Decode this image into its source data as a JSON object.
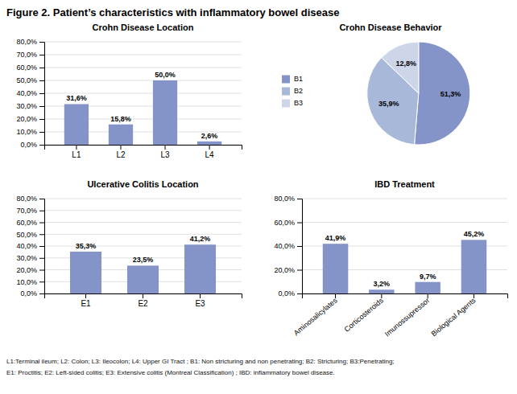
{
  "title": "Figure 2. Patient’s characteristics with inflammatory bowel disease",
  "annotations": [
    "L1:Terminal ileum; L2: Colon; L3: Ileocolon; L4: Upper GI  Tract ; B1: Non stricturing and non penetrating; B2: Stricturing; B3:Penetrating;",
    "E1: Proctitis; E2: Left-sided colitis; E3: Extensive colitis (Montreal Classification) ; IBD: inflammatory bowel disease."
  ],
  "chart_data": [
    {
      "type": "bar",
      "title": "Crohn Disease Location",
      "categories": [
        "L1",
        "L2",
        "L3",
        "L4"
      ],
      "values": [
        31.6,
        15.8,
        50.0,
        2.6
      ],
      "value_labels": [
        "31,6%",
        "15,8%",
        "50,0%",
        "2,6%"
      ],
      "color": "#8494c8",
      "ylim": [
        0,
        80
      ],
      "yticks": [
        {
          "value": 0,
          "label": "0,0%"
        },
        {
          "value": 10,
          "label": "10,0%"
        },
        {
          "value": 20,
          "label": "20,0%"
        },
        {
          "value": 30,
          "label": "30,0%"
        },
        {
          "value": 40,
          "label": "40,0%"
        },
        {
          "value": 50,
          "label": "50,0%"
        },
        {
          "value": 60,
          "label": "60,0%"
        },
        {
          "value": 70,
          "label": "70,0%"
        },
        {
          "value": 80,
          "label": "80,0%"
        }
      ],
      "grid": true,
      "data_labels": true
    },
    {
      "type": "pie",
      "title": "Crohn Disease Behavior",
      "categories": [
        "B1",
        "B2",
        "B3"
      ],
      "values": [
        51.3,
        35.9,
        12.8
      ],
      "value_labels": [
        "51,3%",
        "35,9%",
        "12,8%"
      ],
      "colors": [
        "#8494c8",
        "#a8b8d8",
        "#ccd6e8"
      ],
      "legend": "left",
      "data_labels": true
    },
    {
      "type": "bar",
      "title": "Ulcerative Colitis Location",
      "categories": [
        "E1",
        "E2",
        "E3"
      ],
      "values": [
        35.3,
        23.5,
        41.2
      ],
      "value_labels": [
        "35,3%",
        "23,5%",
        "41,2%"
      ],
      "color": "#8494c8",
      "ylim": [
        0,
        80
      ],
      "yticks": [
        {
          "value": 0,
          "label": "0,0%"
        },
        {
          "value": 10,
          "label": "10,0%"
        },
        {
          "value": 20,
          "label": "20,0%"
        },
        {
          "value": 30,
          "label": "30,0%"
        },
        {
          "value": 40,
          "label": "40,0%"
        },
        {
          "value": 50,
          "label": "50,0%"
        },
        {
          "value": 60,
          "label": "60,0%"
        },
        {
          "value": 70,
          "label": "70,0%"
        },
        {
          "value": 80,
          "label": "80,0%"
        }
      ],
      "grid": true,
      "data_labels": true
    },
    {
      "type": "bar",
      "title": "IBD Treatment",
      "categories": [
        "Aminosalicylates",
        "Corticosteroids",
        "Imunossupressor",
        "Biological Agents"
      ],
      "values": [
        41.9,
        3.2,
        9.7,
        45.2
      ],
      "value_labels": [
        "41,9%",
        "3,2%",
        "9,7%",
        "45,2%"
      ],
      "color": "#8494c8",
      "ylim": [
        0,
        80
      ],
      "yticks": [
        {
          "value": 0,
          "label": "0,0%"
        },
        {
          "value": 20,
          "label": "20,0%"
        },
        {
          "value": 40,
          "label": "40,0%"
        },
        {
          "value": 60,
          "label": "60,0%"
        },
        {
          "value": 80,
          "label": "80,0%"
        }
      ],
      "grid": true,
      "data_labels": true
    }
  ]
}
